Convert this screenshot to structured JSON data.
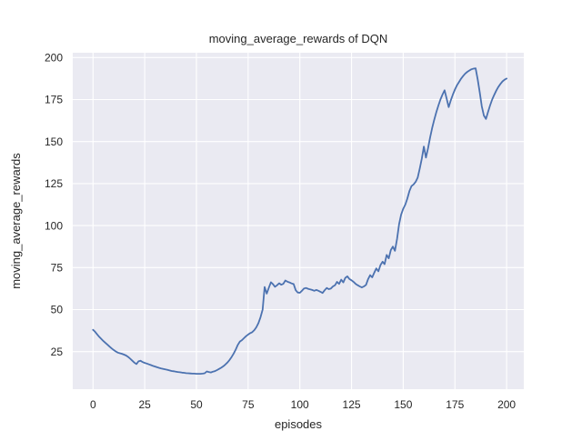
{
  "chart_data": {
    "type": "line",
    "title": "moving_average_rewards of DQN",
    "xlabel": "episodes",
    "ylabel": "moving_average_rewards",
    "x_ticks": [
      0,
      25,
      50,
      75,
      100,
      125,
      150,
      175,
      200
    ],
    "y_ticks": [
      25,
      50,
      75,
      100,
      125,
      150,
      175,
      200
    ],
    "xlim": [
      -10,
      210
    ],
    "ylim": [
      2.5,
      203
    ],
    "grid": true,
    "legend_position": "none",
    "colors": {
      "figure_background": "#ffffff",
      "axes_background": "#eaeaf2",
      "gridline": "#ffffff",
      "line": "#4c72b0",
      "text": "#262626"
    },
    "series": [
      {
        "name": "DQN moving average reward",
        "x_start": 0,
        "x_step": 1,
        "y": [
          38.0,
          36.8,
          35.3,
          33.8,
          32.5,
          31.3,
          30.2,
          29.1,
          28.0,
          26.9,
          26.0,
          25.1,
          24.4,
          24.0,
          23.7,
          23.2,
          22.7,
          21.8,
          20.8,
          19.6,
          18.4,
          17.6,
          19.2,
          19.6,
          18.8,
          18.3,
          17.9,
          17.4,
          17.0,
          16.5,
          16.1,
          15.7,
          15.3,
          15.0,
          14.7,
          14.4,
          14.1,
          13.8,
          13.5,
          13.3,
          13.1,
          12.9,
          12.7,
          12.5,
          12.4,
          12.2,
          12.1,
          12.0,
          11.9,
          11.9,
          11.8,
          11.8,
          11.8,
          11.9,
          12.1,
          13.2,
          12.9,
          12.6,
          13.1,
          13.4,
          14.0,
          14.7,
          15.4,
          16.3,
          17.3,
          18.5,
          20.0,
          21.8,
          23.8,
          26.2,
          29.0,
          31.0,
          31.8,
          33.0,
          34.2,
          35.2,
          36.0,
          36.6,
          37.8,
          39.5,
          42.0,
          45.5,
          50.0,
          63.5,
          59.5,
          63.0,
          66.3,
          65.2,
          63.6,
          64.5,
          65.7,
          64.8,
          65.3,
          67.3,
          66.6,
          66.2,
          65.6,
          65.2,
          61.5,
          60.2,
          60.0,
          61.2,
          62.5,
          62.9,
          62.4,
          62.0,
          61.7,
          61.2,
          61.7,
          61.2,
          60.6,
          59.9,
          61.5,
          62.9,
          62.2,
          62.5,
          63.8,
          64.5,
          66.5,
          65.3,
          67.8,
          66.2,
          68.9,
          69.8,
          68.2,
          67.4,
          66.5,
          65.3,
          64.5,
          63.8,
          63.2,
          63.8,
          64.7,
          68.0,
          70.5,
          69.2,
          72.0,
          74.5,
          72.8,
          76.5,
          78.5,
          77.0,
          82.5,
          80.5,
          85.5,
          87.5,
          85.0,
          92.0,
          101.0,
          106.5,
          110.0,
          112.5,
          116.0,
          120.5,
          123.5,
          124.5,
          126.0,
          128.5,
          134.0,
          140.0,
          147.0,
          140.5,
          146.0,
          152.5,
          158.0,
          163.0,
          167.5,
          171.5,
          175.0,
          178.0,
          180.5,
          175.5,
          170.5,
          174.5,
          178.0,
          181.0,
          183.5,
          185.5,
          187.5,
          189.0,
          190.5,
          191.5,
          192.3,
          193.0,
          193.4,
          193.6,
          187.0,
          179.5,
          171.0,
          165.5,
          163.5,
          167.5,
          171.5,
          175.0,
          177.8,
          180.3,
          182.5,
          184.3,
          185.8,
          186.8,
          187.5
        ]
      }
    ]
  }
}
